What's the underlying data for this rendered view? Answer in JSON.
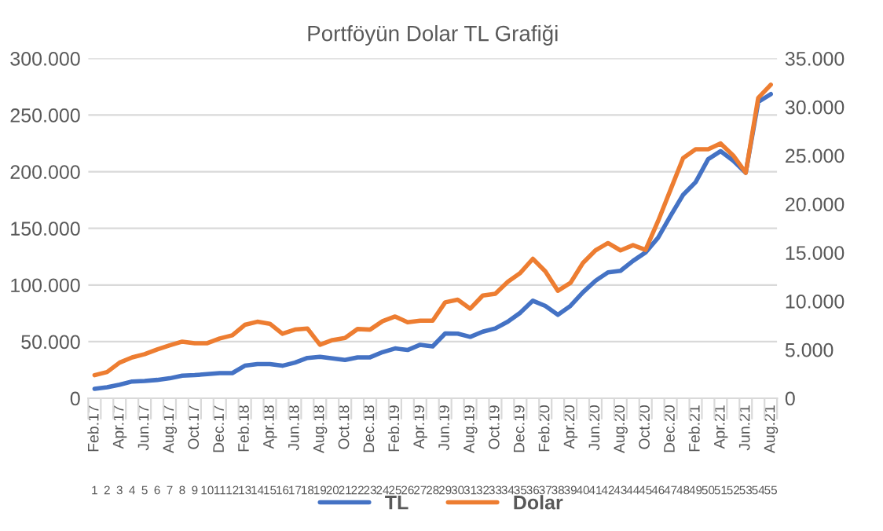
{
  "chart_data": {
    "type": "line",
    "title": "Portföyün Dolar TL Grafiği",
    "categories": [
      "Feb.17",
      null,
      "Apr.17",
      null,
      "Jun.17",
      null,
      "Aug.17",
      null,
      "Oct.17",
      null,
      "Dec.17",
      null,
      "Feb.18",
      null,
      "Apr.18",
      null,
      "Jun.18",
      null,
      "Aug.18",
      null,
      "Oct.18",
      null,
      "Dec.18",
      null,
      "Feb.19",
      null,
      "Apr.19",
      null,
      "Jun.19",
      null,
      "Aug.19",
      null,
      "Oct.19",
      null,
      "Dec.19",
      null,
      "Feb.20",
      null,
      "Apr.20",
      null,
      "Jun.20",
      null,
      "Aug.20",
      null,
      "Oct.20",
      null,
      "Dec.20",
      null,
      "Feb.21",
      null,
      "Apr.21",
      null,
      "Jun.21",
      null,
      "Aug.21"
    ],
    "series": [
      {
        "name": "TL",
        "color": "#4472c4",
        "values": [
          8300,
          9700,
          12000,
          14800,
          15300,
          16200,
          17600,
          19900,
          20400,
          21300,
          22200,
          22200,
          28700,
          30100,
          30100,
          28700,
          31500,
          35600,
          36600,
          35200,
          33800,
          36100,
          36100,
          40700,
          44000,
          42600,
          47200,
          45800,
          57200,
          57000,
          54200,
          58800,
          61600,
          67600,
          75500,
          86100,
          81500,
          73600,
          81500,
          93500,
          103700,
          111100,
          112500,
          121300,
          128700,
          141700,
          161100,
          179600,
          190800,
          211100,
          218100,
          209700,
          199100,
          261600,
          268500
        ]
      },
      {
        "name": "Dolar",
        "color": "#ed7d31",
        "axis": "y2",
        "values": [
          2380,
          2700,
          3670,
          4210,
          4540,
          5020,
          5450,
          5830,
          5670,
          5670,
          6160,
          6480,
          7560,
          7880,
          7670,
          6640,
          7070,
          7180,
          5510,
          5990,
          6210,
          7130,
          7070,
          7940,
          8420,
          7830,
          7990,
          7990,
          9880,
          10150,
          9230,
          10580,
          10750,
          11990,
          12910,
          14360,
          13070,
          11070,
          11880,
          13930,
          15230,
          15980,
          15230,
          15770,
          15280,
          18250,
          21490,
          24730,
          25650,
          25650,
          26240,
          25000,
          23220,
          30940,
          32290
        ]
      }
    ],
    "ylim": [
      0,
      300000
    ],
    "yticks": [
      0,
      {
        "value": 50000,
        "label": "50.000"
      },
      {
        "value": 100000,
        "label": "100.000"
      },
      {
        "value": 150000,
        "label": "150.000"
      },
      {
        "value": 200000,
        "label": "200.000"
      },
      {
        "value": 250000,
        "label": "250.000"
      },
      {
        "value": 300000,
        "label": "300.000"
      }
    ],
    "y2lim": [
      0,
      35000
    ],
    "y2ticks": [
      0,
      {
        "value": 5000,
        "label": "5.000"
      },
      {
        "value": 10000,
        "label": "10.000"
      },
      {
        "value": 15000,
        "label": "15.000"
      },
      {
        "value": 20000,
        "label": "20.000"
      },
      {
        "value": 25000,
        "label": "25.000"
      },
      {
        "value": 30000,
        "label": "30.000"
      },
      {
        "value": 35000,
        "label": "35.000"
      }
    ],
    "x2lim": [
      0.5,
      55.5
    ],
    "x2ticks": [
      1,
      2,
      3,
      4,
      5,
      6,
      7,
      8,
      9,
      10,
      11,
      12,
      13,
      14,
      15,
      16,
      17,
      18,
      19,
      20,
      21,
      22,
      23,
      24,
      25,
      26,
      27,
      28,
      29,
      30,
      31,
      32,
      33,
      34,
      35,
      36,
      37,
      38,
      39,
      40,
      41,
      42,
      43,
      44,
      45,
      46,
      47,
      48,
      49,
      50,
      51,
      52,
      53,
      54,
      55
    ],
    "grid": "y",
    "legend": "bottom",
    "marker": "none",
    "line_style": "solid"
  }
}
